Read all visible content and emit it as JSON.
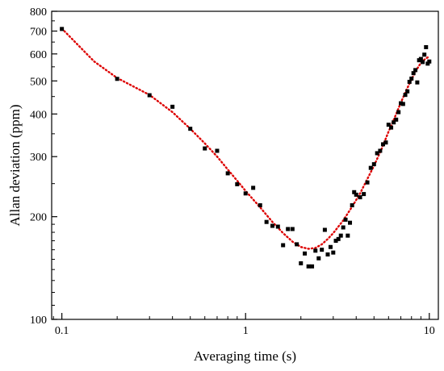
{
  "chart_data": {
    "type": "scatter",
    "xlabel": "Averaging time (s)",
    "ylabel": "Allan deviation (ppm)",
    "x_scale": "log",
    "y_scale": "log",
    "xlim": [
      0.088,
      11.2
    ],
    "ylim": [
      100,
      800
    ],
    "x_ticks": [
      {
        "value": 0.1,
        "label": "0.1"
      },
      {
        "value": 1,
        "label": "1"
      },
      {
        "value": 10,
        "label": "10"
      }
    ],
    "y_ticks": [
      {
        "value": 100,
        "label": "100"
      },
      {
        "value": 200,
        "label": "200"
      },
      {
        "value": 300,
        "label": "300"
      },
      {
        "value": 400,
        "label": "400"
      },
      {
        "value": 500,
        "label": "500"
      },
      {
        "value": 600,
        "label": "600"
      },
      {
        "value": 700,
        "label": "700"
      },
      {
        "value": 800,
        "label": "800"
      }
    ],
    "grid": false,
    "series": [
      {
        "kind": "scatter",
        "color": "#000000",
        "points": [
          [
            0.1,
            710
          ],
          [
            0.2,
            507
          ],
          [
            0.3,
            454
          ],
          [
            0.4,
            420
          ],
          [
            0.5,
            362
          ],
          [
            0.6,
            317
          ],
          [
            0.7,
            312
          ],
          [
            0.8,
            268
          ],
          [
            0.9,
            249
          ],
          [
            1.0,
            234
          ],
          [
            1.1,
            243
          ],
          [
            1.2,
            216
          ],
          [
            1.3,
            193
          ],
          [
            1.4,
            188
          ],
          [
            1.5,
            187
          ],
          [
            1.6,
            165
          ],
          [
            1.7,
            184
          ],
          [
            1.8,
            184
          ],
          [
            1.9,
            166
          ],
          [
            2.0,
            146
          ],
          [
            2.1,
            156
          ],
          [
            2.2,
            143
          ],
          [
            2.3,
            143
          ],
          [
            2.4,
            159
          ],
          [
            2.5,
            151
          ],
          [
            2.6,
            160
          ],
          [
            2.7,
            183
          ],
          [
            2.8,
            155
          ],
          [
            2.9,
            163
          ],
          [
            3.0,
            157
          ],
          [
            3.1,
            170
          ],
          [
            3.2,
            172
          ],
          [
            3.3,
            176
          ],
          [
            3.4,
            186
          ],
          [
            3.5,
            196
          ],
          [
            3.6,
            176
          ],
          [
            3.7,
            192
          ],
          [
            3.8,
            216
          ],
          [
            3.9,
            236
          ],
          [
            4.0,
            232
          ],
          [
            4.2,
            228
          ],
          [
            4.4,
            233
          ],
          [
            4.6,
            252
          ],
          [
            4.8,
            278
          ],
          [
            5.0,
            285
          ],
          [
            5.2,
            307
          ],
          [
            5.4,
            312
          ],
          [
            5.6,
            326
          ],
          [
            5.8,
            330
          ],
          [
            6.0,
            372
          ],
          [
            6.2,
            365
          ],
          [
            6.4,
            378
          ],
          [
            6.6,
            385
          ],
          [
            6.8,
            405
          ],
          [
            7.0,
            430
          ],
          [
            7.2,
            428
          ],
          [
            7.4,
            455
          ],
          [
            7.6,
            466
          ],
          [
            7.8,
            497
          ],
          [
            8.0,
            508
          ],
          [
            8.2,
            527
          ],
          [
            8.4,
            538
          ],
          [
            8.6,
            495
          ],
          [
            8.8,
            575
          ],
          [
            9.0,
            580
          ],
          [
            9.2,
            568
          ],
          [
            9.4,
            597
          ],
          [
            9.6,
            628
          ],
          [
            9.8,
            562
          ],
          [
            10.0,
            570
          ]
        ]
      },
      {
        "kind": "fit-line",
        "style": "dotted",
        "color": "#dd0000",
        "x": [
          0.1,
          0.15,
          0.2,
          0.3,
          0.4,
          0.5,
          0.6,
          0.7,
          0.8,
          0.9,
          1.0,
          1.2,
          1.4,
          1.6,
          1.8,
          2.0,
          2.2,
          2.4,
          2.6,
          2.8,
          3.0,
          3.4,
          3.8,
          4.2,
          4.6,
          5.0,
          5.5,
          6.0,
          6.5,
          7.0,
          7.5,
          8.0,
          8.5,
          9.0,
          9.5,
          10.0
        ],
        "y": [
          712,
          570,
          510,
          455,
          405,
          362,
          328,
          300,
          275,
          255,
          238,
          213,
          193,
          179,
          169,
          163,
          161,
          162,
          166,
          172,
          179,
          195,
          214,
          234,
          258,
          282,
          316,
          355,
          392,
          432,
          470,
          505,
          538,
          565,
          580,
          590
        ]
      }
    ]
  }
}
